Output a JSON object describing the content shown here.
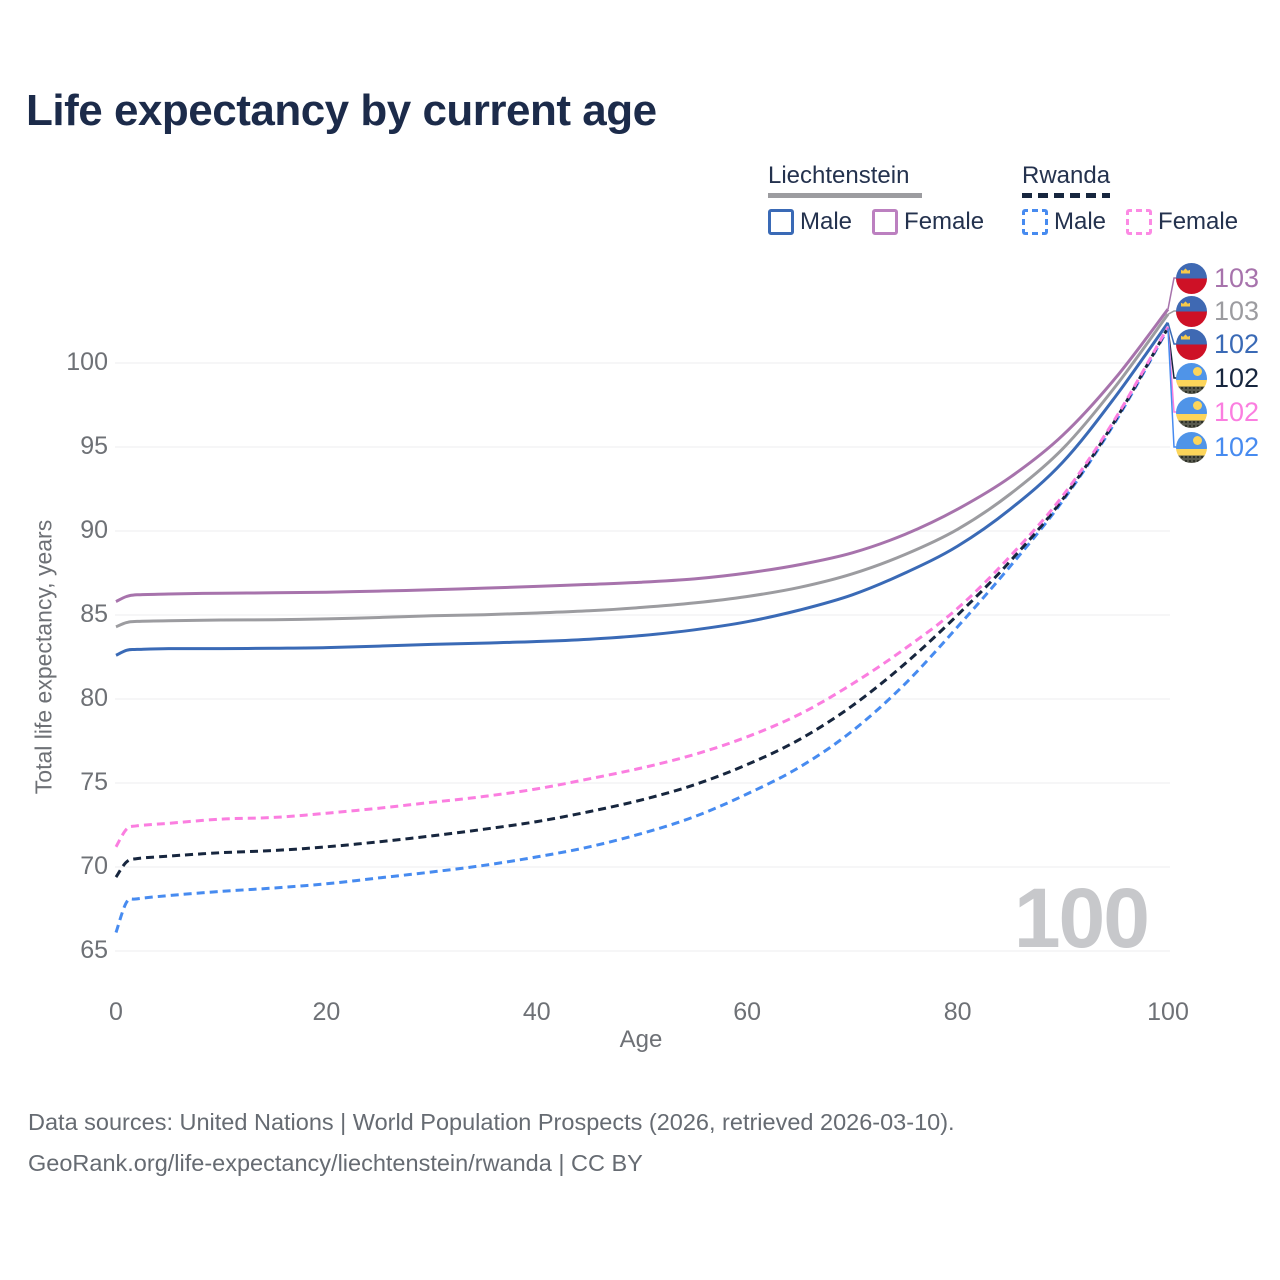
{
  "title": "Life expectancy by current age",
  "watermark": "100",
  "legend": {
    "groups": [
      {
        "country": "Liechtenstein",
        "line_style": "solid",
        "line_color": "#9c9ca0",
        "items": [
          {
            "label": "Male",
            "color": "#3a6ab6",
            "dashed": false
          },
          {
            "label": "Female",
            "color": "#bc80c0",
            "dashed": false
          }
        ]
      },
      {
        "country": "Rwanda",
        "line_style": "dashed",
        "line_color": "#17263e",
        "items": [
          {
            "label": "Male",
            "color": "#478bf0",
            "dashed": true
          },
          {
            "label": "Female",
            "color": "#fc8ae4",
            "dashed": true
          }
        ]
      }
    ]
  },
  "y_axis": {
    "title": "Total life expectancy, years",
    "ticks": [
      65,
      70,
      75,
      80,
      85,
      90,
      95,
      100
    ]
  },
  "x_axis": {
    "title": "Age",
    "ticks": [
      0,
      20,
      40,
      60,
      80,
      100
    ]
  },
  "end_labels": [
    {
      "value": "103",
      "flag": "liechtenstein",
      "series": "li_female",
      "color": "#a773ac"
    },
    {
      "value": "103",
      "flag": "liechtenstein",
      "series": "li_both",
      "color": "#9c9ca0"
    },
    {
      "value": "102",
      "flag": "liechtenstein",
      "series": "li_male",
      "color": "#3a6ab6"
    },
    {
      "value": "102",
      "flag": "rwanda",
      "series": "rw_both",
      "color": "#17263e"
    },
    {
      "value": "102",
      "flag": "rwanda",
      "series": "rw_female",
      "color": "#fb7ee0"
    },
    {
      "value": "102",
      "flag": "rwanda",
      "series": "rw_male",
      "color": "#478bf0"
    }
  ],
  "footer": {
    "line1": "Data sources: United Nations | World Population Prospects (2026, retrieved 2026-03-10).",
    "line2": "GeoRank.org/life-expectancy/liechtenstein/rwanda | CC BY"
  },
  "chart_data": {
    "type": "line",
    "title": "Life expectancy by current age",
    "xlabel": "Age",
    "ylabel": "Total life expectancy, years",
    "xlim": [
      0,
      100
    ],
    "ylim": [
      63,
      105
    ],
    "grid": true,
    "legend_position": "top-right",
    "x_ages": [
      0,
      1,
      2,
      5,
      10,
      15,
      20,
      25,
      30,
      35,
      40,
      45,
      50,
      55,
      60,
      65,
      70,
      75,
      80,
      85,
      90,
      95,
      100
    ],
    "series": [
      {
        "id": "li_female",
        "name": "Liechtenstein Female",
        "color": "#a773ac",
        "dashed": false,
        "values": [
          85.8,
          86.1,
          86.2,
          86.25,
          86.3,
          86.32,
          86.36,
          86.42,
          86.5,
          86.6,
          86.7,
          86.82,
          86.95,
          87.15,
          87.5,
          88.0,
          88.7,
          89.8,
          91.3,
          93.2,
          95.7,
          99.1,
          103.2
        ]
      },
      {
        "id": "li_both",
        "name": "Liechtenstein (both sexes)",
        "color": "#9c9ca0",
        "dashed": false,
        "values": [
          84.3,
          84.55,
          84.62,
          84.66,
          84.7,
          84.72,
          84.77,
          84.85,
          84.95,
          85.02,
          85.12,
          85.25,
          85.45,
          85.72,
          86.1,
          86.65,
          87.45,
          88.6,
          90.1,
          92.2,
          94.9,
          98.6,
          102.9
        ]
      },
      {
        "id": "li_male",
        "name": "Liechtenstein Male",
        "color": "#3a6ab6",
        "dashed": false,
        "values": [
          82.6,
          82.9,
          82.95,
          83.0,
          83.0,
          83.02,
          83.06,
          83.15,
          83.25,
          83.33,
          83.42,
          83.56,
          83.78,
          84.12,
          84.6,
          85.3,
          86.2,
          87.5,
          89.1,
          91.3,
          94.1,
          98.0,
          102.4
        ]
      },
      {
        "id": "rw_female",
        "name": "Rwanda Female",
        "color": "#fb7ee0",
        "dashed": true,
        "values": [
          71.2,
          72.25,
          72.45,
          72.6,
          72.85,
          72.95,
          73.2,
          73.5,
          73.85,
          74.2,
          74.65,
          75.25,
          75.9,
          76.7,
          77.75,
          79.1,
          80.9,
          83.0,
          85.4,
          88.5,
          92.1,
          96.7,
          102.15
        ]
      },
      {
        "id": "rw_both",
        "name": "Rwanda (both sexes)",
        "color": "#17263e",
        "dashed": true,
        "values": [
          69.4,
          70.3,
          70.5,
          70.65,
          70.85,
          70.98,
          71.2,
          71.5,
          71.85,
          72.25,
          72.7,
          73.3,
          74.0,
          74.9,
          76.1,
          77.6,
          79.6,
          82.1,
          85.0,
          88.2,
          91.9,
          96.6,
          102.1
        ]
      },
      {
        "id": "rw_male",
        "name": "Rwanda Male",
        "color": "#478bf0",
        "dashed": true,
        "values": [
          66.1,
          67.9,
          68.1,
          68.3,
          68.55,
          68.75,
          69.0,
          69.35,
          69.7,
          70.1,
          70.6,
          71.2,
          72.0,
          73.0,
          74.35,
          75.95,
          78.1,
          80.9,
          84.3,
          87.9,
          91.8,
          96.5,
          102.05
        ]
      }
    ]
  }
}
